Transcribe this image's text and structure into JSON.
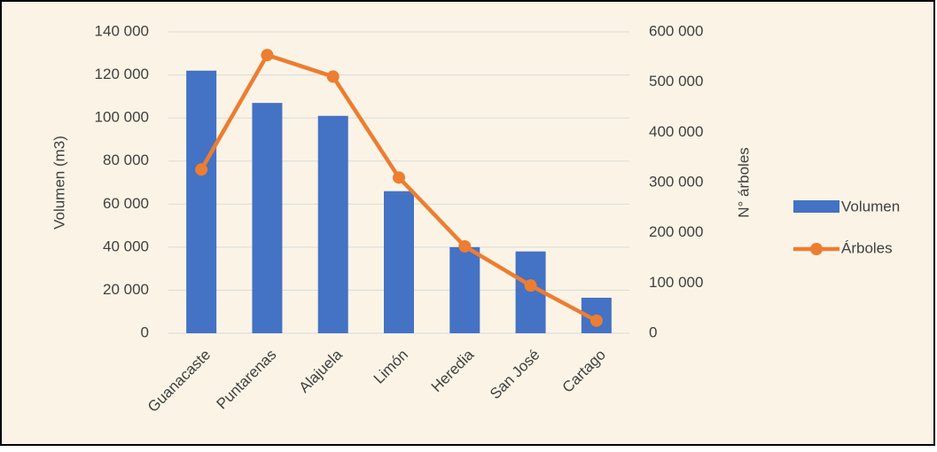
{
  "chart_data": {
    "type": "bar-line",
    "categories": [
      "Guanacaste",
      "Puntarenas",
      "Alajuela",
      "Limón",
      "Heredia",
      "San José",
      "Cartago"
    ],
    "y_label": "Volumen (m3)",
    "y2_label": "N° árboles",
    "series": [
      {
        "name": "Volumen",
        "type": "bar",
        "color": "#4472c4",
        "values": [
          122000,
          107000,
          101000,
          66000,
          40000,
          38000,
          16500
        ]
      },
      {
        "name": "Árboles",
        "type": "line",
        "axis": "y2",
        "color": "#ed7d31",
        "values": [
          326000,
          554000,
          511000,
          310000,
          173000,
          95000,
          25000
        ]
      }
    ],
    "ylim": [
      0,
      140000
    ],
    "yticks": [
      0,
      {
        "value": 20000,
        "label": "20 000"
      },
      {
        "value": 40000,
        "label": "40 000"
      },
      {
        "value": 60000,
        "label": "60 000"
      },
      {
        "value": 80000,
        "label": "80 000"
      },
      {
        "value": 100000,
        "label": "100 000"
      },
      {
        "value": 120000,
        "label": "120 000"
      },
      {
        "value": 140000,
        "label": "140 000"
      }
    ],
    "y2lim": [
      0,
      600000
    ],
    "y2ticks": [
      0,
      {
        "value": 100000,
        "label": "100 000"
      },
      {
        "value": 200000,
        "label": "200 000"
      },
      {
        "value": 300000,
        "label": "300 000"
      },
      {
        "value": 400000,
        "label": "400 000"
      },
      {
        "value": 500000,
        "label": "500 000"
      },
      {
        "value": 600000,
        "label": "600 000"
      }
    ],
    "grid": true,
    "legend": "right"
  }
}
